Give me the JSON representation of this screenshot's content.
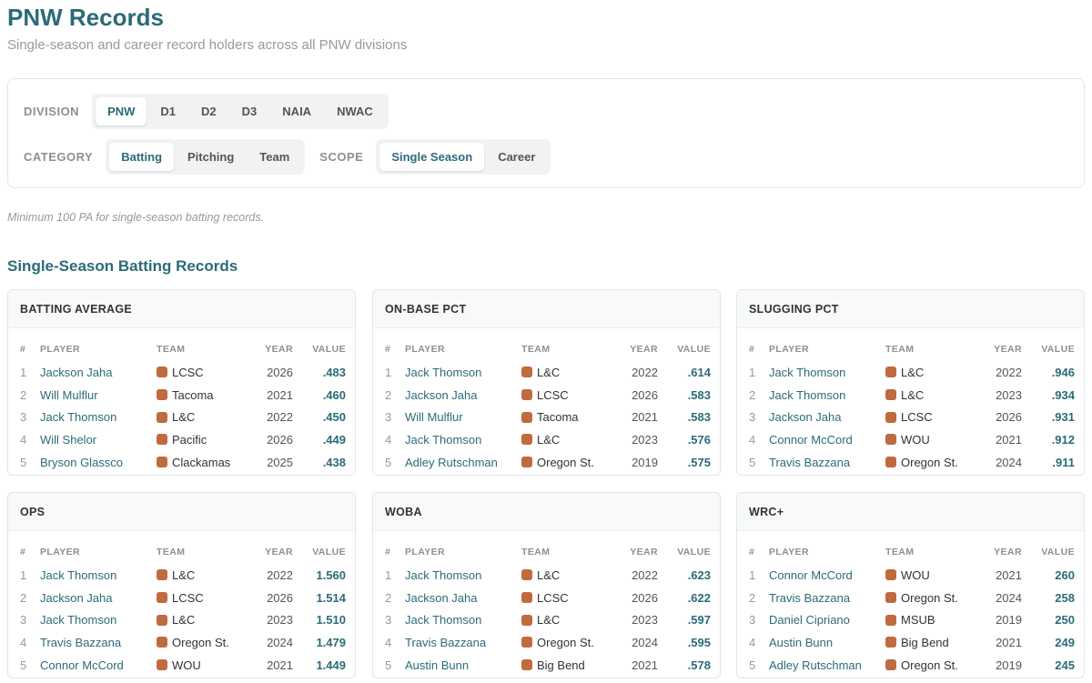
{
  "header": {
    "title": "PNW Records",
    "subtitle": "Single-season and career record holders across all PNW divisions"
  },
  "filters": {
    "division": {
      "label": "DIVISION",
      "options": [
        "PNW",
        "D1",
        "D2",
        "D3",
        "NAIA",
        "NWAC"
      ],
      "active": 0
    },
    "category": {
      "label": "CATEGORY",
      "options": [
        "Batting",
        "Pitching",
        "Team"
      ],
      "active": 0
    },
    "scope": {
      "label": "SCOPE",
      "options": [
        "Single Season",
        "Career"
      ],
      "active": 0
    }
  },
  "note": "Minimum 100 PA for single-season batting records.",
  "section_title": "Single-Season Batting Records",
  "columns": [
    "#",
    "PLAYER",
    "TEAM",
    "YEAR",
    "VALUE"
  ],
  "cards": [
    {
      "title": "BATTING AVERAGE",
      "rows": [
        [
          1,
          "Jackson Jaha",
          "LCSC",
          2026,
          ".483"
        ],
        [
          2,
          "Will Mulflur",
          "Tacoma",
          2021,
          ".460"
        ],
        [
          3,
          "Jack Thomson",
          "L&C",
          2022,
          ".450"
        ],
        [
          4,
          "Will Shelor",
          "Pacific",
          2026,
          ".449"
        ],
        [
          5,
          "Bryson Glassco",
          "Clackamas",
          2025,
          ".438"
        ]
      ]
    },
    {
      "title": "ON-BASE PCT",
      "rows": [
        [
          1,
          "Jack Thomson",
          "L&C",
          2022,
          ".614"
        ],
        [
          2,
          "Jackson Jaha",
          "LCSC",
          2026,
          ".583"
        ],
        [
          3,
          "Will Mulflur",
          "Tacoma",
          2021,
          ".583"
        ],
        [
          4,
          "Jack Thomson",
          "L&C",
          2023,
          ".576"
        ],
        [
          5,
          "Adley Rutschman",
          "Oregon St.",
          2019,
          ".575"
        ]
      ]
    },
    {
      "title": "SLUGGING PCT",
      "rows": [
        [
          1,
          "Jack Thomson",
          "L&C",
          2022,
          ".946"
        ],
        [
          2,
          "Jack Thomson",
          "L&C",
          2023,
          ".934"
        ],
        [
          3,
          "Jackson Jaha",
          "LCSC",
          2026,
          ".931"
        ],
        [
          4,
          "Connor McCord",
          "WOU",
          2021,
          ".912"
        ],
        [
          5,
          "Travis Bazzana",
          "Oregon St.",
          2024,
          ".911"
        ]
      ]
    },
    {
      "title": "OPS",
      "rows": [
        [
          1,
          "Jack Thomson",
          "L&C",
          2022,
          "1.560"
        ],
        [
          2,
          "Jackson Jaha",
          "LCSC",
          2026,
          "1.514"
        ],
        [
          3,
          "Jack Thomson",
          "L&C",
          2023,
          "1.510"
        ],
        [
          4,
          "Travis Bazzana",
          "Oregon St.",
          2024,
          "1.479"
        ],
        [
          5,
          "Connor McCord",
          "WOU",
          2021,
          "1.449"
        ]
      ]
    },
    {
      "title": "WOBA",
      "rows": [
        [
          1,
          "Jack Thomson",
          "L&C",
          2022,
          ".623"
        ],
        [
          2,
          "Jackson Jaha",
          "LCSC",
          2026,
          ".622"
        ],
        [
          3,
          "Jack Thomson",
          "L&C",
          2023,
          ".597"
        ],
        [
          4,
          "Travis Bazzana",
          "Oregon St.",
          2024,
          ".595"
        ],
        [
          5,
          "Austin Bunn",
          "Big Bend",
          2021,
          ".578"
        ]
      ]
    },
    {
      "title": "WRC+",
      "rows": [
        [
          1,
          "Connor McCord",
          "WOU",
          2021,
          260
        ],
        [
          2,
          "Travis Bazzana",
          "Oregon St.",
          2024,
          258
        ],
        [
          3,
          "Daniel Cipriano",
          "MSUB",
          2019,
          250
        ],
        [
          4,
          "Austin Bunn",
          "Big Bend",
          2021,
          249
        ],
        [
          5,
          "Adley Rutschman",
          "Oregon St.",
          2019,
          245
        ]
      ]
    }
  ]
}
